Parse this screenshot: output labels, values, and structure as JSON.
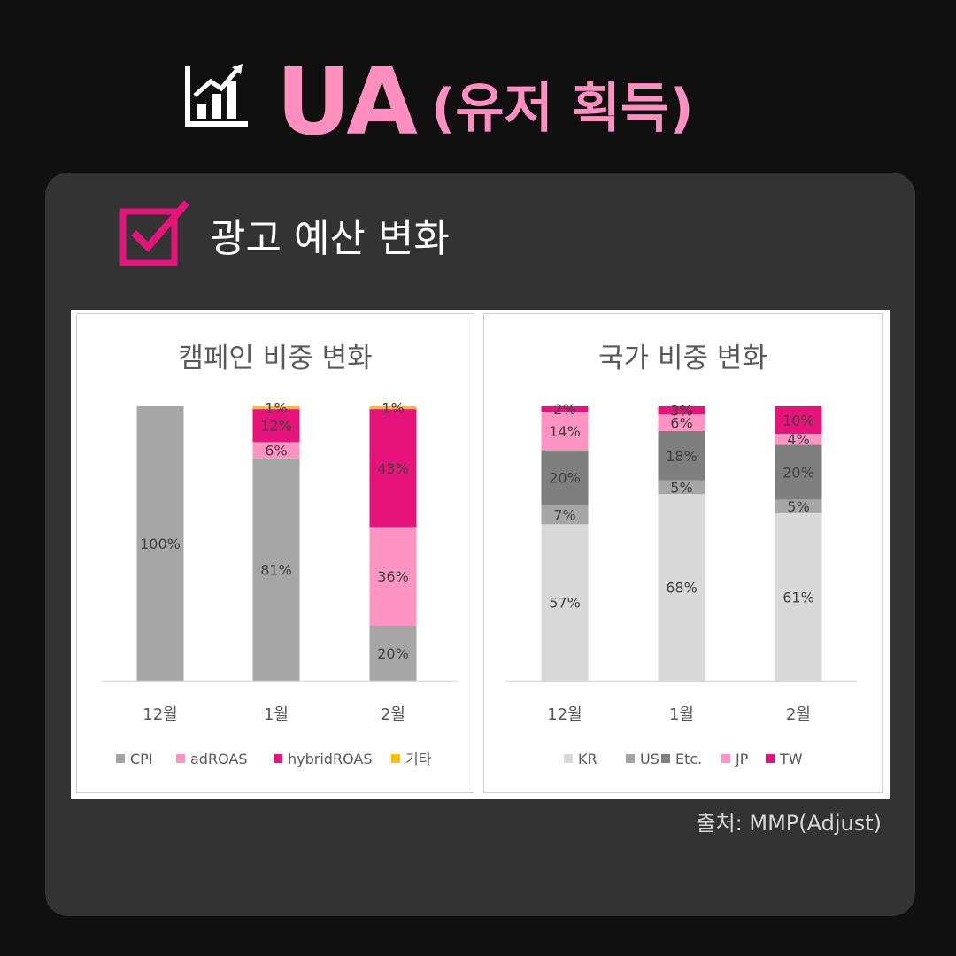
{
  "header": {
    "title_main": "UA",
    "title_sub": "(유저 획득)",
    "icon": "bar-chart-growth-icon"
  },
  "section": {
    "title": "광고 예산 변화",
    "icon": "checkbox-checked-icon"
  },
  "source": "출처: MMP(Adjust)",
  "colors": {
    "background": "#101010",
    "panel": "#333333",
    "accent_pink": "#ff8fbf",
    "accent_magenta": "#e6137a"
  },
  "chart_data": [
    {
      "type": "bar",
      "stacked": true,
      "title": "캠페인 비중 변화",
      "categories": [
        "12월",
        "1월",
        "2월"
      ],
      "series": [
        {
          "name": "CPI",
          "color": "#a6a6a6",
          "values": [
            100,
            81,
            20
          ],
          "labels": [
            "100%",
            "81%",
            "20%"
          ]
        },
        {
          "name": "adROAS",
          "color": "#ff94c2",
          "values": [
            0,
            6,
            36
          ],
          "labels": [
            "",
            "6%",
            "36%"
          ]
        },
        {
          "name": "hybridROAS",
          "color": "#e6137a",
          "values": [
            0,
            12,
            43
          ],
          "labels": [
            "",
            "12%",
            "43%"
          ]
        },
        {
          "name": "기타",
          "color": "#ffc000",
          "values": [
            0,
            1,
            1
          ],
          "labels": [
            "",
            "1%",
            "1%"
          ]
        }
      ],
      "legend": "bottom",
      "grid": false,
      "ylim": [
        0,
        100
      ]
    },
    {
      "type": "bar",
      "stacked": true,
      "title": "국가 비중 변화",
      "categories": [
        "12월",
        "1월",
        "2월"
      ],
      "series": [
        {
          "name": "KR",
          "color": "#d9d9d9",
          "values": [
            57,
            68,
            61
          ],
          "labels": [
            "57%",
            "68%",
            "61%"
          ]
        },
        {
          "name": "US",
          "color": "#a6a6a6",
          "values": [
            7,
            5,
            5
          ],
          "labels": [
            "7%",
            "5%",
            "5%"
          ]
        },
        {
          "name": "Etc.",
          "color": "#7f7f7f",
          "values": [
            20,
            18,
            20
          ],
          "labels": [
            "20%",
            "18%",
            "20%"
          ]
        },
        {
          "name": "JP",
          "color": "#ff94c2",
          "values": [
            14,
            6,
            4
          ],
          "labels": [
            "14%",
            "6%",
            "4%"
          ]
        },
        {
          "name": "TW",
          "color": "#e6137a",
          "values": [
            2,
            3,
            10
          ],
          "labels": [
            "2%",
            "3%",
            "10%"
          ]
        }
      ],
      "legend": "bottom",
      "grid": false,
      "ylim": [
        0,
        100
      ]
    }
  ]
}
